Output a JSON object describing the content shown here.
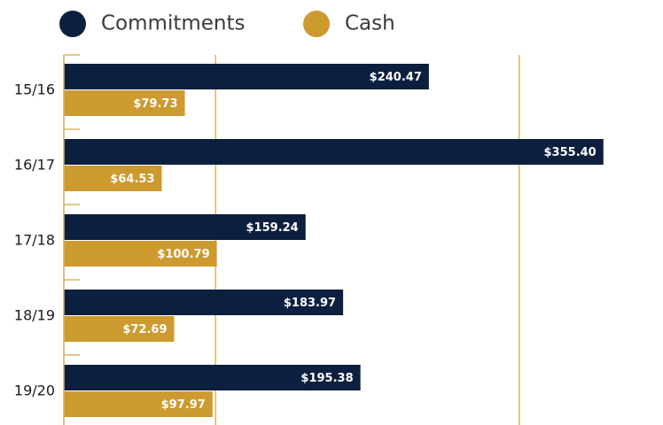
{
  "chart_data": {
    "type": "bar",
    "orientation": "horizontal",
    "categories": [
      "15/16",
      "16/17",
      "17/18",
      "18/19",
      "19/20"
    ],
    "series": [
      {
        "name": "Commitments",
        "color": "#0c1f3f",
        "values": [
          240.47,
          355.4,
          159.24,
          183.97,
          195.38
        ],
        "value_labels": [
          "$240.47",
          "$355.40",
          "$159.24",
          "$183.97",
          "$195.38"
        ]
      },
      {
        "name": "Cash",
        "color": "#cc9a2e",
        "values": [
          79.73,
          64.53,
          100.79,
          72.69,
          97.97
        ],
        "value_labels": [
          "$79.73",
          "$64.53",
          "$100.79",
          "$72.69",
          "$97.97"
        ]
      }
    ],
    "xlim": [
      0,
      390
    ],
    "xticks": [
      0,
      100,
      300
    ],
    "grid": true,
    "legend": "top"
  }
}
